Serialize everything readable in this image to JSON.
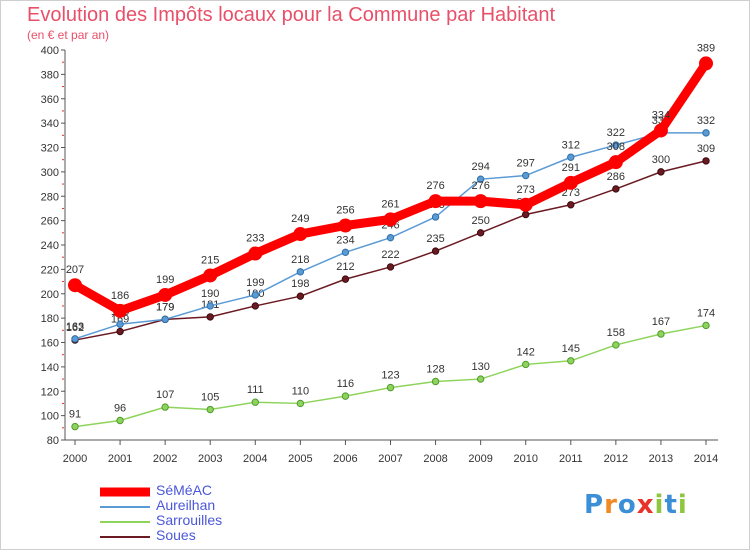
{
  "chart_data": {
    "type": "line",
    "title": "Evolution des Impôts locaux pour la Commune par Habitant",
    "subtitle": "(en € et par an)",
    "x": [
      "2000",
      "2001",
      "2002",
      "2003",
      "2004",
      "2005",
      "2006",
      "2007",
      "2008",
      "2009",
      "2010",
      "2011",
      "2012",
      "2013",
      "2014"
    ],
    "ylim": [
      80,
      400
    ],
    "yticks": [
      80,
      100,
      120,
      140,
      160,
      180,
      200,
      220,
      240,
      260,
      280,
      300,
      320,
      340,
      360,
      380,
      400
    ],
    "grid": false,
    "legend_position": "bottom-left",
    "series": [
      {
        "name": "SéMéAC",
        "color": "#ff0000",
        "values": [
          207,
          186,
          199,
          215,
          233,
          249,
          256,
          261,
          276,
          276,
          273,
          291,
          308,
          334,
          389
        ]
      },
      {
        "name": "Aureilhan",
        "color": "#5b9bd5",
        "values": [
          163,
          175,
          179,
          190,
          199,
          218,
          234,
          246,
          263,
          294,
          297,
          312,
          322,
          332,
          332
        ]
      },
      {
        "name": "Sarrouilles",
        "color": "#8ed45c",
        "values": [
          91,
          96,
          107,
          105,
          111,
          110,
          116,
          123,
          128,
          130,
          142,
          145,
          158,
          167,
          174
        ]
      },
      {
        "name": "Soues",
        "color": "#6b1a22",
        "values": [
          162,
          169,
          179,
          181,
          190,
          198,
          212,
          222,
          235,
          250,
          265,
          273,
          286,
          300,
          309
        ]
      }
    ]
  },
  "legend": {
    "items": [
      {
        "label": "SéMéAC"
      },
      {
        "label": "Aureilhan"
      },
      {
        "label": "Sarrouilles"
      },
      {
        "label": "Soues"
      }
    ]
  },
  "logo": {
    "letters": [
      "P",
      "r",
      "o",
      "x",
      "i",
      "t",
      "i"
    ],
    "colors": [
      "#3b8fd6",
      "#f08a24",
      "#3b8fd6",
      "#e8332a",
      "#8ec63f",
      "#3b8fd6",
      "#8ec63f"
    ]
  }
}
